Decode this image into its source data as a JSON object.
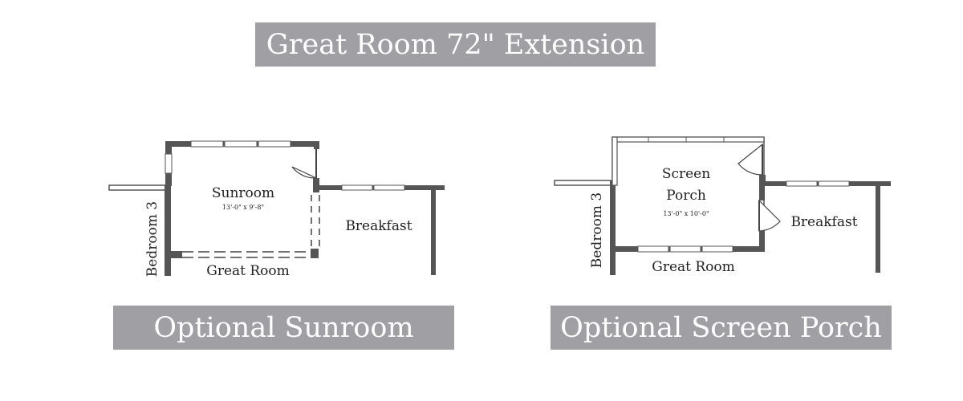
{
  "title": "Great Room 72\" Extension",
  "plans": [
    {
      "caption": "Optional Sunroom",
      "room_name_line1": "Sunroom",
      "room_name_line2": "",
      "room_dims": "13'-0\" x 9'-8\"",
      "labels": {
        "bedroom": "Bedroom 3",
        "great_room": "Great Room",
        "breakfast": "Breakfast"
      }
    },
    {
      "caption": "Optional Screen Porch",
      "room_name_line1": "Screen",
      "room_name_line2": "Porch",
      "room_dims": "13'-0\" x 10'-0\"",
      "labels": {
        "bedroom": "Bedroom 3",
        "great_room": "Great Room",
        "breakfast": "Breakfast"
      }
    }
  ],
  "colors": {
    "banner": "#a09fa3",
    "banner_text": "#ffffff",
    "wall": "#555555"
  }
}
